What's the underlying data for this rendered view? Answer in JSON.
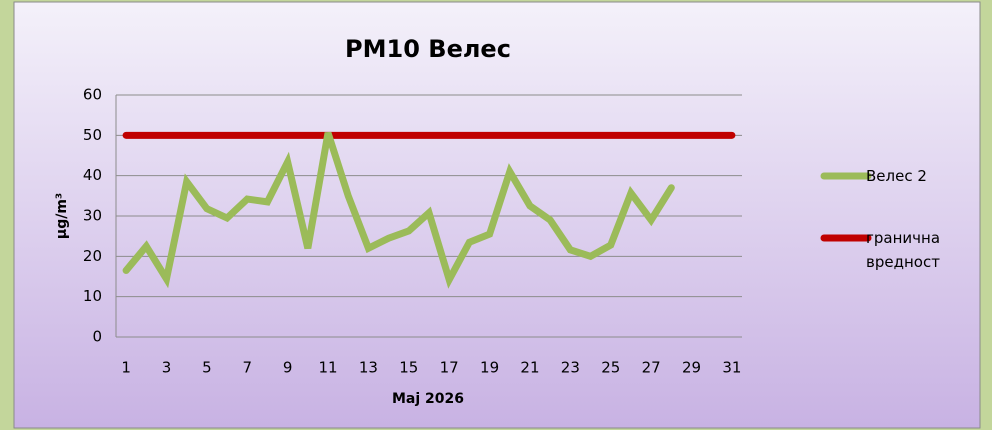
{
  "chart_data": {
    "type": "line",
    "title": "PM10 Велес",
    "x_label": "Мај 2026",
    "y_label": "µg/m³",
    "categories": [
      "1",
      null,
      "3",
      null,
      "5",
      null,
      "7",
      null,
      "9",
      null,
      "11",
      null,
      "13",
      null,
      "15",
      null,
      "17",
      null,
      "19",
      null,
      "21",
      null,
      "23",
      null,
      "25",
      null,
      "27",
      null,
      "29",
      null,
      "31"
    ],
    "series": [
      {
        "name": "Велес 2",
        "color": "#9bbb59",
        "values": [
          16.5,
          22.5,
          14.4,
          38.5,
          31.8,
          29.5,
          34.2,
          33.5,
          43.4,
          22,
          50.6,
          35,
          22,
          24.5,
          26.3,
          30.8,
          14.2,
          23.5,
          25.5,
          41,
          32.5,
          29,
          21.6,
          20,
          22.8,
          35.7,
          29,
          37,
          null,
          null,
          null
        ]
      },
      {
        "name": "гранична вредност",
        "color": "#c00000",
        "values": [
          50,
          50,
          50,
          50,
          50,
          50,
          50,
          50,
          50,
          50,
          50,
          50,
          50,
          50,
          50,
          50,
          50,
          50,
          50,
          50,
          50,
          50,
          50,
          50,
          50,
          50,
          50,
          50,
          50,
          50,
          50
        ]
      }
    ],
    "ylim": [
      0,
      60
    ],
    "yticks": [
      0,
      10,
      20,
      30,
      40,
      50,
      60
    ],
    "grid": true,
    "legend": "right"
  }
}
